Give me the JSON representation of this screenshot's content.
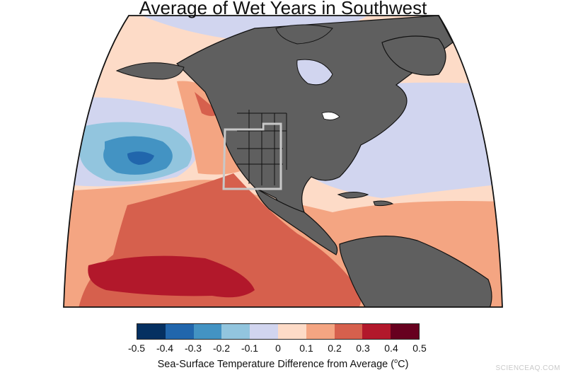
{
  "title": "Average of Wet Years in Southwest",
  "colorbar": {
    "colors": [
      "#053061",
      "#2166ac",
      "#4393c3",
      "#92c5de",
      "#d1d5ef",
      "#fddbc7",
      "#f4a582",
      "#d6604d",
      "#b2182b",
      "#67001f"
    ],
    "ticks": [
      "-0.5",
      "-0.4",
      "-0.3",
      "-0.2",
      "-0.1",
      "0",
      "0.1",
      "0.2",
      "0.3",
      "0.4",
      "0.5"
    ],
    "label_prefix": "Sea-Surface Temperature Difference from Average (",
    "label_sup": "o",
    "label_suffix": "C)"
  },
  "map": {
    "land_color": "#5f5f5f",
    "study_region": "Southwest"
  },
  "watermark": "SCIENCEAQ.COM"
}
